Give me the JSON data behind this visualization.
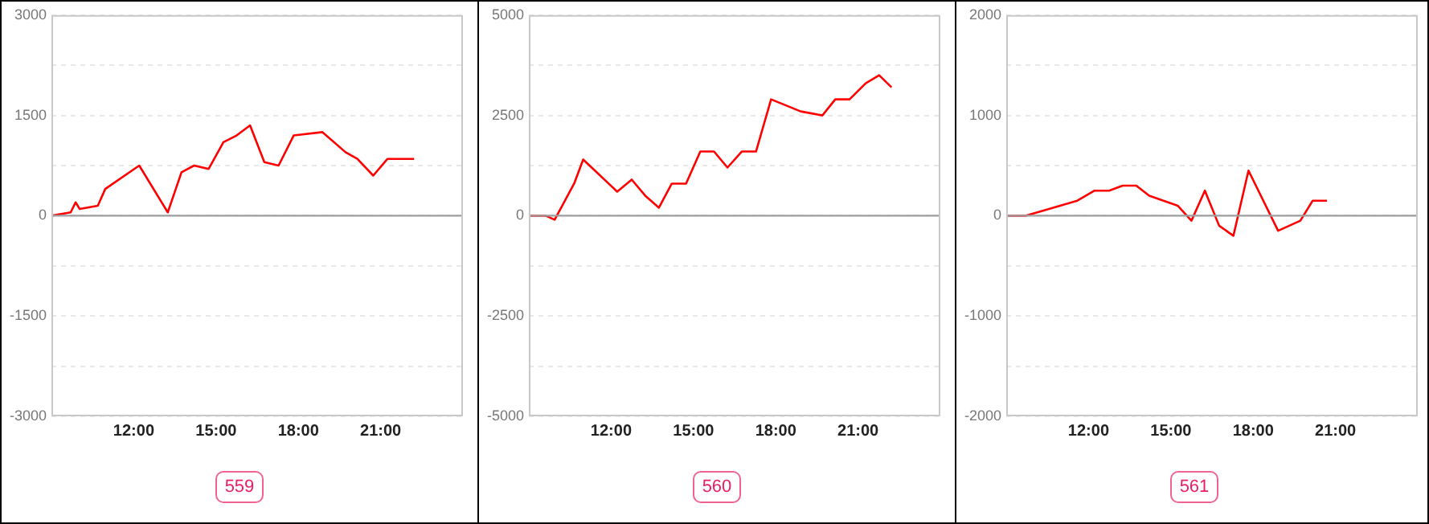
{
  "chart_data": [
    {
      "type": "line",
      "x": [
        9.0,
        9.7,
        9.88,
        10.03,
        10.69,
        10.96,
        12.2,
        13.24,
        13.74,
        14.2,
        14.73,
        15.27,
        15.75,
        16.24,
        16.76,
        17.28,
        17.83,
        18.88,
        19.72,
        20.15,
        20.73,
        21.25,
        22.22
      ],
      "series": [
        {
          "color": "#ff0000",
          "values": [
            0,
            50,
            200,
            100,
            150,
            400,
            750,
            50,
            650,
            750,
            700,
            1100,
            1200,
            1350,
            800,
            750,
            1200,
            1250,
            950,
            850,
            600,
            850,
            850
          ]
        }
      ],
      "xlim": [
        9,
        24
      ],
      "xticks": [
        {
          "value": 12,
          "label": "12:00"
        },
        {
          "value": 15,
          "label": "15:00"
        },
        {
          "value": 18,
          "label": "18:00"
        },
        {
          "value": 21,
          "label": "21:00"
        }
      ],
      "ylim": [
        -3000,
        3000
      ],
      "yticks": [
        -3000,
        {
          "value": -2250,
          "label": null
        },
        -1500,
        {
          "value": -750,
          "label": null
        },
        0,
        {
          "value": 750,
          "label": null
        },
        1500,
        {
          "value": 2250,
          "label": null
        },
        3000
      ],
      "grid": "y",
      "legend": false,
      "marker": "none",
      "ref_lines": [
        {
          "axis": "y",
          "value": 0,
          "color": "#9e9e9e"
        }
      ],
      "annotations": [
        "559"
      ]
    },
    {
      "type": "line",
      "x": [
        9.0,
        9.61,
        9.94,
        10.65,
        10.98,
        12.22,
        12.75,
        13.24,
        13.74,
        14.21,
        14.73,
        15.25,
        15.75,
        16.24,
        16.76,
        17.28,
        17.83,
        18.91,
        19.7,
        20.17,
        20.69,
        21.28,
        21.77,
        22.22
      ],
      "series": [
        {
          "color": "#ff0000",
          "values": [
            0,
            0,
            -100,
            800,
            1400,
            600,
            900,
            500,
            200,
            800,
            800,
            1600,
            1600,
            1200,
            1600,
            1600,
            2900,
            2600,
            2500,
            2900,
            2900,
            3300,
            3500,
            3200
          ]
        }
      ],
      "xlim": [
        9,
        24
      ],
      "xticks": [
        {
          "value": 12,
          "label": "12:00"
        },
        {
          "value": 15,
          "label": "15:00"
        },
        {
          "value": 18,
          "label": "18:00"
        },
        {
          "value": 21,
          "label": "21:00"
        }
      ],
      "ylim": [
        -5000,
        5000
      ],
      "yticks": [
        -5000,
        {
          "value": -3750,
          "label": null
        },
        -2500,
        {
          "value": -1250,
          "label": null
        },
        0,
        {
          "value": 1250,
          "label": null
        },
        2500,
        {
          "value": 3750,
          "label": null
        },
        5000
      ],
      "grid": "y",
      "legend": false,
      "marker": "none",
      "ref_lines": [
        {
          "axis": "y",
          "value": 0,
          "color": "#9e9e9e"
        }
      ],
      "annotations": [
        "560"
      ]
    },
    {
      "type": "line",
      "x": [
        9.0,
        9.7,
        10.33,
        10.96,
        11.59,
        12.22,
        12.75,
        13.24,
        13.74,
        14.21,
        14.73,
        15.25,
        15.75,
        16.24,
        16.76,
        17.28,
        17.83,
        18.91,
        19.72,
        20.17,
        20.69
      ],
      "series": [
        {
          "color": "#ff0000",
          "values": [
            0,
            0,
            50,
            100,
            150,
            250,
            250,
            300,
            300,
            200,
            150,
            100,
            -50,
            250,
            -100,
            -200,
            450,
            -150,
            -50,
            150,
            150
          ]
        }
      ],
      "xlim": [
        9,
        24
      ],
      "xticks": [
        {
          "value": 12,
          "label": "12:00"
        },
        {
          "value": 15,
          "label": "15:00"
        },
        {
          "value": 18,
          "label": "18:00"
        },
        {
          "value": 21,
          "label": "21:00"
        }
      ],
      "ylim": [
        -2000,
        2000
      ],
      "yticks": [
        -2000,
        {
          "value": -1500,
          "label": null
        },
        -1000,
        {
          "value": -500,
          "label": null
        },
        0,
        {
          "value": 500,
          "label": null
        },
        1000,
        {
          "value": 1500,
          "label": null
        },
        2000
      ],
      "grid": "y",
      "legend": false,
      "marker": "none",
      "ref_lines": [
        {
          "axis": "y",
          "value": 0,
          "color": "#9e9e9e"
        }
      ],
      "annotations": [
        "561"
      ]
    }
  ]
}
